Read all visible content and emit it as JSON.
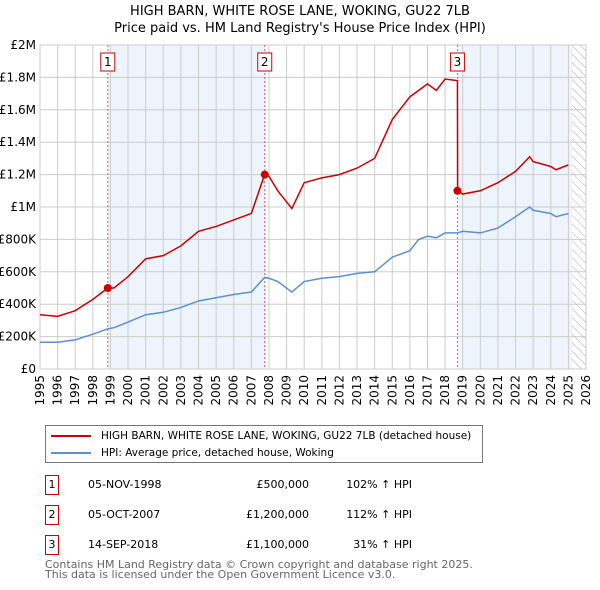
{
  "title": "HIGH BARN, WHITE ROSE LANE, WOKING, GU22 7LB",
  "subtitle": "Price paid vs. HM Land Registry's House Price Index (HPI)",
  "chart_data": {
    "type": "line",
    "xlim": [
      1995,
      2026
    ],
    "ylim": [
      0,
      2000000
    ],
    "x_ticks": [
      "1995",
      "1996",
      "1997",
      "1998",
      "1999",
      "2000",
      "2001",
      "2002",
      "2003",
      "2004",
      "2005",
      "2006",
      "2007",
      "2008",
      "2009",
      "2010",
      "2011",
      "2012",
      "2013",
      "2014",
      "2015",
      "2016",
      "2017",
      "2018",
      "2019",
      "2020",
      "2021",
      "2022",
      "2023",
      "2024",
      "2025",
      "2026"
    ],
    "y_ticks": [
      {
        "v": 0,
        "label": "£0"
      },
      {
        "v": 200000,
        "label": "£200K"
      },
      {
        "v": 400000,
        "label": "£400K"
      },
      {
        "v": 600000,
        "label": "£600K"
      },
      {
        "v": 800000,
        "label": "£800K"
      },
      {
        "v": 1000000,
        "label": "£1M"
      },
      {
        "v": 1200000,
        "label": "£1.2M"
      },
      {
        "v": 1400000,
        "label": "£1.4M"
      },
      {
        "v": 1600000,
        "label": "£1.6M"
      },
      {
        "v": 1800000,
        "label": "£1.8M"
      },
      {
        "v": 2000000,
        "label": "£2M"
      }
    ],
    "series": [
      {
        "name": "HIGH BARN, WHITE ROSE LANE, WOKING, GU22 7LB (detached house)",
        "color": "#cc0000",
        "x": [
          1995,
          1996,
          1997,
          1998,
          1998.85,
          1999.2,
          2000,
          2001,
          2002,
          2003,
          2004,
          2005,
          2006,
          2007,
          2007.75,
          2008,
          2008.5,
          2009.3,
          2010,
          2011,
          2012,
          2013,
          2014,
          2015,
          2016,
          2016.5,
          2017,
          2017.5,
          2018,
          2018.7,
          2018.71,
          2019,
          2020,
          2021,
          2022,
          2022.8,
          2023,
          2024,
          2024.3,
          2025
        ],
        "y": [
          335000,
          325000,
          360000,
          430000,
          500000,
          500000,
          570000,
          680000,
          700000,
          760000,
          850000,
          880000,
          920000,
          960000,
          1200000,
          1190000,
          1100000,
          990000,
          1150000,
          1180000,
          1200000,
          1240000,
          1300000,
          1540000,
          1680000,
          1720000,
          1760000,
          1720000,
          1790000,
          1780000,
          1100000,
          1080000,
          1100000,
          1150000,
          1220000,
          1310000,
          1280000,
          1250000,
          1230000,
          1260000
        ]
      },
      {
        "name": "HPI: Average price, detached house, Woking",
        "color": "#5b8fd4",
        "x": [
          1995,
          1996,
          1997,
          1998,
          1998.85,
          1999.2,
          2000,
          2001,
          2002,
          2003,
          2004,
          2005,
          2006,
          2007,
          2007.75,
          2008,
          2008.5,
          2009.3,
          2010,
          2011,
          2012,
          2013,
          2014,
          2015,
          2016,
          2016.5,
          2017,
          2017.5,
          2018,
          2018.7,
          2019,
          2020,
          2021,
          2022,
          2022.8,
          2023,
          2024,
          2024.3,
          2025
        ],
        "y": [
          165000,
          165000,
          180000,
          215000,
          248000,
          255000,
          290000,
          335000,
          350000,
          380000,
          420000,
          440000,
          460000,
          475000,
          565000,
          560000,
          540000,
          475000,
          540000,
          560000,
          570000,
          590000,
          600000,
          690000,
          730000,
          800000,
          820000,
          810000,
          840000,
          840000,
          850000,
          840000,
          870000,
          940000,
          1000000,
          980000,
          960000,
          940000,
          960000
        ]
      }
    ],
    "sales": [
      {
        "label": "1",
        "x": 1998.85,
        "y": 500000,
        "date": "05-NOV-1998",
        "price": "£500,000",
        "hpi": "102% ↑ HPI"
      },
      {
        "label": "2",
        "x": 2007.76,
        "y": 1200000,
        "date": "05-OCT-2007",
        "price": "£1,200,000",
        "hpi": "112% ↑ HPI"
      },
      {
        "label": "3",
        "x": 2018.7,
        "y": 1100000,
        "date": "14-SEP-2018",
        "price": "£1,100,000",
        "hpi": "31% ↑ HPI"
      }
    ],
    "shaded_ranges": [
      [
        1998.85,
        2007.76
      ],
      [
        2018.7,
        2025.2
      ]
    ],
    "hatched_from": 2025.2
  },
  "footer": [
    "Contains HM Land Registry data © Crown copyright and database right 2025.",
    "This data is licensed under the Open Government Licence v3.0."
  ]
}
